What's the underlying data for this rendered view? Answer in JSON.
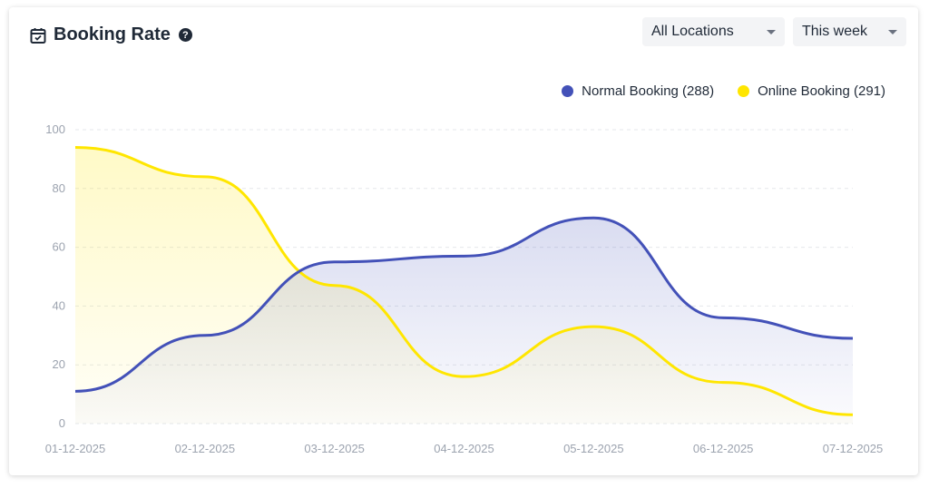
{
  "header": {
    "title": "Booking Rate",
    "help_icon": "?",
    "location_select": "All Locations",
    "period_select": "This week"
  },
  "colors": {
    "normal": "#4351b8",
    "online": "#ffe600"
  },
  "chart_data": {
    "type": "area",
    "title": "Booking Rate",
    "categories": [
      "01-12-2025",
      "02-12-2025",
      "03-12-2025",
      "04-12-2025",
      "05-12-2025",
      "06-12-2025",
      "07-12-2025"
    ],
    "series": [
      {
        "name": "Normal Booking (288)",
        "values": [
          11,
          30,
          55,
          57,
          70,
          36,
          29
        ]
      },
      {
        "name": "Online Booking (291)",
        "values": [
          94,
          84,
          47,
          16,
          33,
          14,
          3
        ]
      }
    ],
    "yticks": [
      "0",
      "20",
      "40",
      "60",
      "80",
      "100"
    ],
    "ylim": [
      0,
      100
    ],
    "grid": true,
    "legend": "top-right"
  }
}
